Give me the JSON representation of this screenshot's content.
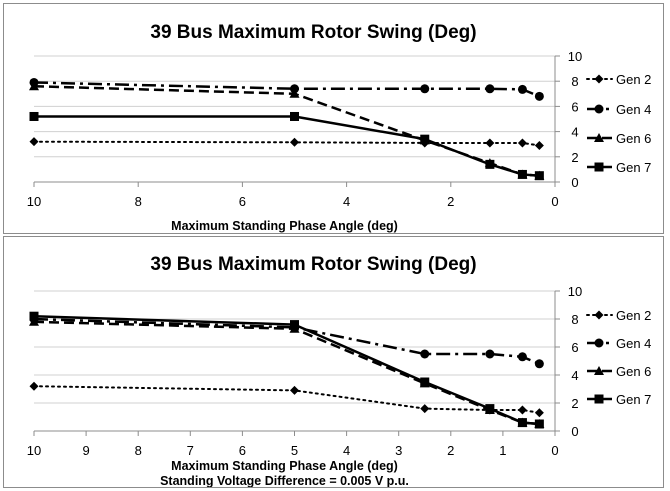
{
  "chart_data": [
    {
      "type": "line",
      "title": "39 Bus Maximum Rotor Swing (Deg)",
      "xlabel": "Maximum Standing Phase Angle (deg)",
      "note": "",
      "x_reversed": true,
      "xlim": [
        0,
        10
      ],
      "ylim": [
        0,
        10
      ],
      "x_ticks": [
        10,
        8,
        6,
        4,
        2,
        0
      ],
      "y_ticks": [
        0,
        2,
        4,
        6,
        8,
        10
      ],
      "legend_position": "right",
      "series": [
        {
          "name": "Gen 2",
          "x": [
            10,
            5,
            2.5,
            1.25,
            0.625,
            0.3
          ],
          "y": [
            3.2,
            3.15,
            3.1,
            3.1,
            3.1,
            2.9
          ]
        },
        {
          "name": "Gen 4",
          "x": [
            10,
            5,
            2.5,
            1.25,
            0.625,
            0.3
          ],
          "y": [
            7.9,
            7.4,
            7.4,
            7.4,
            7.35,
            6.8
          ]
        },
        {
          "name": "Gen 6",
          "x": [
            10,
            5,
            2.5,
            1.25,
            0.625,
            0.3
          ],
          "y": [
            7.6,
            7.0,
            3.3,
            1.5,
            0.6,
            0.5
          ]
        },
        {
          "name": "Gen 7",
          "x": [
            10,
            5,
            2.5,
            1.25,
            0.625,
            0.3
          ],
          "y": [
            5.2,
            5.2,
            3.4,
            1.4,
            0.6,
            0.5
          ]
        }
      ]
    },
    {
      "type": "line",
      "title": "39 Bus Maximum Rotor Swing (Deg)",
      "xlabel": "Maximum Standing Phase Angle (deg)",
      "note": "Standing Voltage Difference = 0.005 V p.u.",
      "x_reversed": true,
      "xlim": [
        0,
        10
      ],
      "ylim": [
        0,
        10
      ],
      "x_ticks": [
        10,
        9,
        8,
        7,
        6,
        5,
        4,
        3,
        2,
        1,
        0
      ],
      "y_ticks": [
        0,
        2,
        4,
        6,
        8,
        10
      ],
      "legend_position": "right",
      "series": [
        {
          "name": "Gen 2",
          "x": [
            10,
            5,
            2.5,
            1.25,
            0.625,
            0.3
          ],
          "y": [
            3.2,
            2.9,
            1.6,
            1.5,
            1.5,
            1.3
          ]
        },
        {
          "name": "Gen 4",
          "x": [
            10,
            5,
            2.5,
            1.25,
            0.625,
            0.3
          ],
          "y": [
            8.0,
            7.4,
            5.5,
            5.5,
            5.3,
            4.8
          ]
        },
        {
          "name": "Gen 6",
          "x": [
            10,
            5,
            2.5,
            1.25,
            0.625,
            0.3
          ],
          "y": [
            7.8,
            7.3,
            3.4,
            1.5,
            0.6,
            0.5
          ]
        },
        {
          "name": "Gen 7",
          "x": [
            10,
            5,
            2.5,
            1.25,
            0.625,
            0.3
          ],
          "y": [
            8.2,
            7.6,
            3.5,
            1.6,
            0.6,
            0.5
          ]
        }
      ]
    }
  ]
}
